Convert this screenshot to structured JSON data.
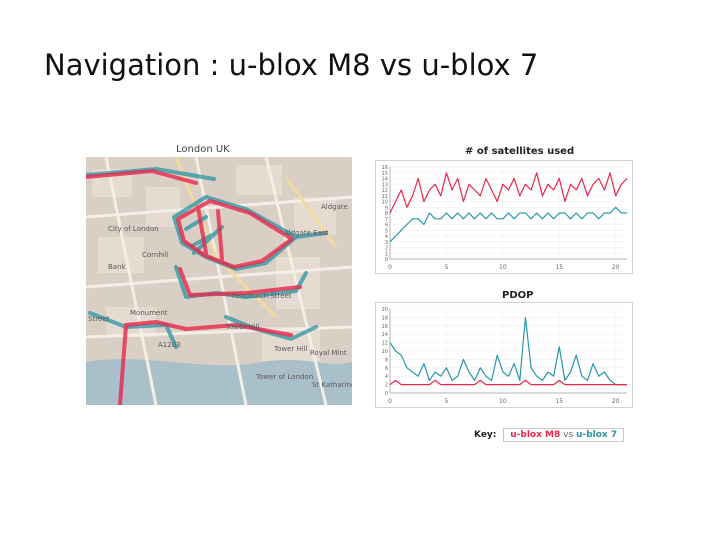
{
  "slide": {
    "title": "Navigation : u-blox M8 vs u-blox 7"
  },
  "map": {
    "caption": "London UK",
    "labels": [
      "City of London",
      "Bank",
      "Cornhill",
      "Aldgate",
      "Aldgate East",
      "Fenchurch Street",
      "Monument",
      "Street",
      "Tower Hill",
      "Tower Hill",
      "Tower of London",
      "Royal Mint",
      "St Katharine's Dock",
      "A1203"
    ]
  },
  "colors": {
    "m8": "#e8284b",
    "u7": "#2a96a6",
    "map_bg": "#d9cfc4",
    "river": "#a9bfca"
  },
  "key": {
    "label": "Key:",
    "m8": "u-blox M8",
    "vs": "vs",
    "u7": "u-blox 7"
  },
  "chart_data": [
    {
      "type": "line",
      "title": "# of satellites used",
      "xlim": [
        0,
        21
      ],
      "ylim": [
        0,
        16
      ],
      "x_ticks": [
        "0",
        "5",
        "10",
        "15",
        "20"
      ],
      "y_ticks": [
        "0",
        "1",
        "2",
        "3",
        "4",
        "5",
        "6",
        "7",
        "8",
        "9",
        "10",
        "11",
        "12",
        "13",
        "14",
        "15",
        "16"
      ],
      "series": [
        {
          "color": "#e8284b",
          "x": [
            0,
            0.5,
            1,
            1.5,
            2,
            2.5,
            3,
            3.5,
            4,
            4.5,
            5,
            5.5,
            6,
            6.5,
            7,
            7.5,
            8,
            8.5,
            9,
            9.5,
            10,
            10.5,
            11,
            11.5,
            12,
            12.5,
            13,
            13.5,
            14,
            14.5,
            15,
            15.5,
            16,
            16.5,
            17,
            17.5,
            18,
            18.5,
            19,
            19.5,
            20,
            20.5,
            21
          ],
          "y": [
            8,
            10,
            12,
            9,
            11,
            14,
            10,
            12,
            13,
            11,
            15,
            12,
            14,
            10,
            13,
            12,
            11,
            14,
            12,
            10,
            13,
            12,
            14,
            11,
            13,
            12,
            15,
            11,
            13,
            12,
            14,
            10,
            13,
            12,
            14,
            11,
            13,
            14,
            12,
            15,
            11,
            13,
            14
          ]
        },
        {
          "color": "#2a96a6",
          "x": [
            0,
            0.5,
            1,
            1.5,
            2,
            2.5,
            3,
            3.5,
            4,
            4.5,
            5,
            5.5,
            6,
            6.5,
            7,
            7.5,
            8,
            8.5,
            9,
            9.5,
            10,
            10.5,
            11,
            11.5,
            12,
            12.5,
            13,
            13.5,
            14,
            14.5,
            15,
            15.5,
            16,
            16.5,
            17,
            17.5,
            18,
            18.5,
            19,
            19.5,
            20,
            20.5,
            21
          ],
          "y": [
            3,
            4,
            5,
            6,
            7,
            7,
            6,
            8,
            7,
            7,
            8,
            7,
            8,
            7,
            8,
            7,
            8,
            7,
            8,
            7,
            7,
            8,
            7,
            8,
            8,
            7,
            8,
            7,
            8,
            7,
            8,
            8,
            7,
            8,
            7,
            8,
            8,
            7,
            8,
            8,
            9,
            8,
            8
          ]
        }
      ]
    },
    {
      "type": "line",
      "title": "PDOP",
      "xlim": [
        0,
        21
      ],
      "ylim": [
        0,
        20
      ],
      "x_ticks": [
        "0",
        "5",
        "10",
        "15",
        "20"
      ],
      "y_ticks": [
        "0",
        "2",
        "4",
        "6",
        "8",
        "10",
        "12",
        "14",
        "16",
        "18",
        "20"
      ],
      "series": [
        {
          "color": "#2a96a6",
          "x": [
            0,
            0.5,
            1,
            1.5,
            2,
            2.5,
            3,
            3.5,
            4,
            4.5,
            5,
            5.5,
            6,
            6.5,
            7,
            7.5,
            8,
            8.5,
            9,
            9.5,
            10,
            10.5,
            11,
            11.5,
            12,
            12.5,
            13,
            13.5,
            14,
            14.5,
            15,
            15.5,
            16,
            16.5,
            17,
            17.5,
            18,
            18.5,
            19,
            19.5,
            20,
            20.5,
            21
          ],
          "y": [
            12,
            10,
            9,
            6,
            5,
            4,
            7,
            3,
            5,
            4,
            6,
            3,
            4,
            8,
            5,
            3,
            6,
            4,
            3,
            9,
            5,
            4,
            7,
            3,
            18,
            6,
            4,
            3,
            5,
            4,
            11,
            3,
            5,
            9,
            4,
            3,
            7,
            4,
            5,
            3,
            2,
            2,
            2
          ]
        },
        {
          "color": "#e8284b",
          "x": [
            0,
            0.5,
            1,
            1.5,
            2,
            2.5,
            3,
            3.5,
            4,
            4.5,
            5,
            5.5,
            6,
            6.5,
            7,
            7.5,
            8,
            8.5,
            9,
            9.5,
            10,
            10.5,
            11,
            11.5,
            12,
            12.5,
            13,
            13.5,
            14,
            14.5,
            15,
            15.5,
            16,
            16.5,
            17,
            17.5,
            18,
            18.5,
            19,
            19.5,
            20,
            20.5,
            21
          ],
          "y": [
            2,
            3,
            2,
            2,
            2,
            2,
            2,
            2,
            3,
            2,
            2,
            2,
            2,
            2,
            2,
            2,
            3,
            2,
            2,
            2,
            2,
            2,
            2,
            2,
            3,
            2,
            2,
            2,
            2,
            2,
            3,
            2,
            2,
            2,
            2,
            2,
            2,
            2,
            2,
            2,
            2,
            2,
            2
          ]
        }
      ]
    }
  ]
}
